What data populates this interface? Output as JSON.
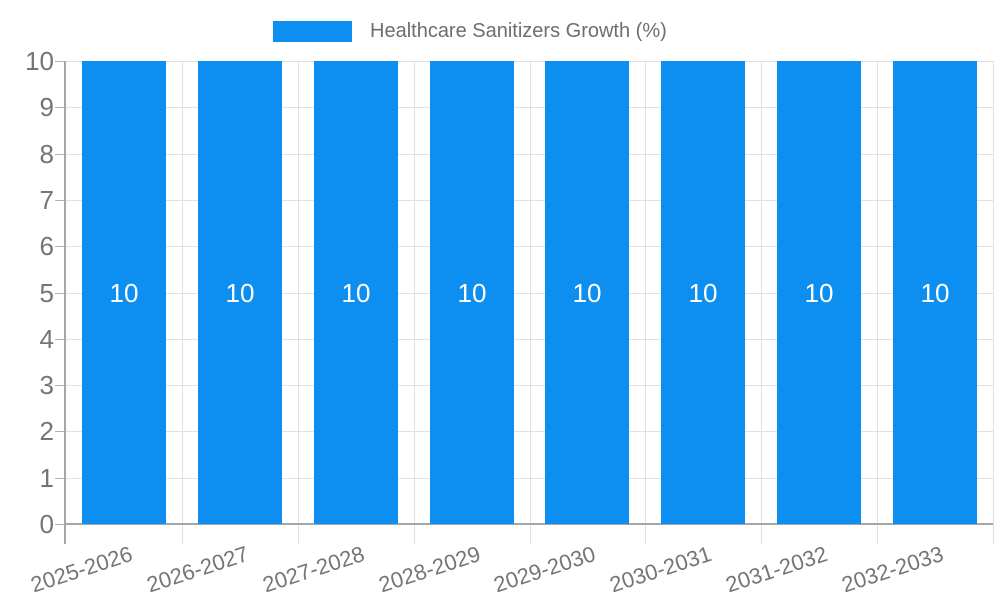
{
  "chart_data": {
    "type": "bar",
    "title": "Healthcare Sanitizers Growth (%)",
    "categories": [
      "2025-2026",
      "2026-2027",
      "2027-2028",
      "2028-2029",
      "2029-2030",
      "2030-2031",
      "2031-2032",
      "2032-2033"
    ],
    "values": [
      10,
      10,
      10,
      10,
      10,
      10,
      10,
      10
    ],
    "bar_labels": [
      "10",
      "10",
      "10",
      "10",
      "10",
      "10",
      "10",
      "10"
    ],
    "xlabel": "",
    "ylabel": "",
    "ylim": [
      0,
      10
    ],
    "yticks": [
      0,
      1,
      2,
      3,
      4,
      5,
      6,
      7,
      8,
      9,
      10
    ],
    "grid": true,
    "legend_position": "top-center",
    "colors": {
      "bar": "#0d8ff2",
      "bar_label_text": "#ffffff",
      "axis_text": "#757575",
      "legend_text": "#6e6e6e",
      "gridline": "#e0e0e0",
      "tick": "#b3b3b3",
      "axis_line": "#a6a6a6",
      "background": "#ffffff"
    }
  }
}
